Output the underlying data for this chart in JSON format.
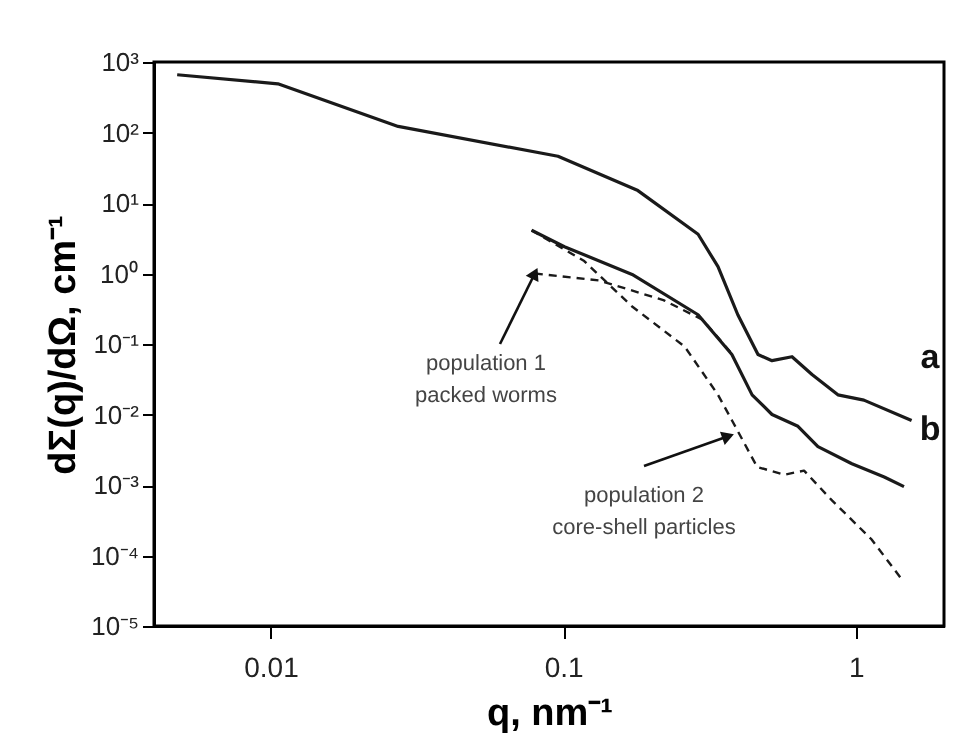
{
  "chart_data": {
    "type": "line",
    "xlabel": "q, nm⁻¹",
    "ylabel": "dΣ(q)/dΩ, cm⁻¹",
    "log": "xy",
    "grid": false,
    "marker": "none",
    "xlim": [
      0.004,
      2
    ],
    "xticks": [
      0.01,
      0.1,
      1
    ],
    "ylim": [
      1e-05,
      1000
    ],
    "yticks": [
      {
        "value": 1e-05,
        "label": "10⁻⁵"
      },
      {
        "value": 0.0001,
        "label": "10⁻⁴"
      },
      {
        "value": 0.001,
        "label": "10⁻³"
      },
      {
        "value": 0.01,
        "label": "10⁻²"
      },
      {
        "value": 0.1,
        "label": "10⁻¹"
      },
      {
        "value": 1,
        "label": "10⁰"
      },
      {
        "value": 10,
        "label": "10¹"
      },
      {
        "value": 100,
        "label": "10²"
      },
      {
        "value": 1000,
        "label": "10³"
      }
    ],
    "series": [
      {
        "color": "#1a1a1a",
        "line_style": "solid",
        "x": [
          0.0048,
          0.0106,
          0.0273,
          0.096,
          0.18,
          0.289,
          0.338,
          0.395,
          0.463,
          0.517,
          0.605,
          0.708,
          0.868,
          1.065,
          1.55
        ],
        "values": [
          660,
          490,
          122,
          46,
          15,
          3.6,
          1.25,
          0.26,
          0.071,
          0.058,
          0.066,
          0.037,
          0.019,
          0.016,
          0.0082
        ]
      },
      {
        "color": "#1a1a1a",
        "line_style": "solid",
        "x": [
          0.078,
          0.101,
          0.172,
          0.289,
          0.377,
          0.442,
          0.517,
          0.634,
          0.742,
          0.969,
          1.25,
          1.46
        ],
        "values": [
          4.1,
          2.4,
          0.97,
          0.26,
          0.071,
          0.019,
          0.01,
          0.0068,
          0.0035,
          0.002,
          0.0013,
          0.00095
        ]
      },
      {
        "color": "#1a1a1a",
        "line_style": "dashed",
        "x": [
          0.08,
          0.132,
          0.22,
          0.3,
          0.38
        ],
        "values": [
          1.0,
          0.8,
          0.42,
          0.22,
          0.07
        ]
      },
      {
        "color": "#1a1a1a",
        "line_style": "dashed",
        "x": [
          0.078,
          0.118,
          0.172,
          0.26,
          0.338,
          0.377,
          0.46,
          0.57,
          0.665,
          0.83,
          1.13,
          1.44
        ],
        "values": [
          4.1,
          1.5,
          0.34,
          0.092,
          0.019,
          0.0083,
          0.0018,
          0.0014,
          0.0016,
          0.0006,
          0.00017,
          4.5e-05
        ]
      }
    ],
    "annotations": [
      "a",
      "b",
      {
        "text": "population 1\npacked worms",
        "x": 0.08,
        "y": 1.0
      },
      {
        "text": "population 2\ncore-shell particles",
        "x": 0.366,
        "y": 0.0049
      }
    ]
  }
}
